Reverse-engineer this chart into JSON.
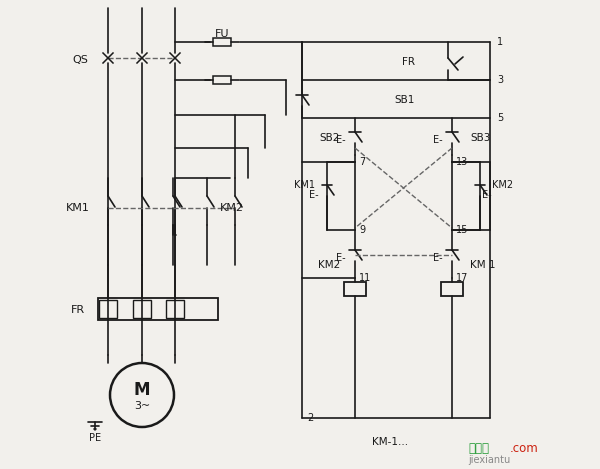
{
  "bg_color": "#f2f0ec",
  "line_color": "#1a1a1a",
  "dash_color": "#666666",
  "text_color": "#1a1a1a",
  "figsize": [
    6.0,
    4.69
  ],
  "dpi": 100,
  "wm1": "接线图",
  "wm2": ".com",
  "wm3": "jiexiantu"
}
